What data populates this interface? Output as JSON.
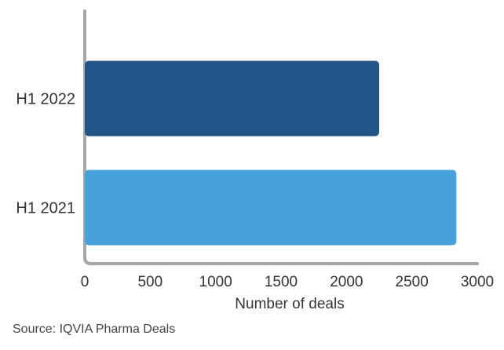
{
  "chart_data": {
    "type": "bar",
    "orientation": "horizontal",
    "categories": [
      "H1 2022",
      "H1 2021"
    ],
    "values": [
      2250,
      2840
    ],
    "bar_colors": [
      "#225585",
      "#47A1DB"
    ],
    "xlabel": "Number of deals",
    "ylabel": "",
    "xlim": [
      0,
      3000
    ],
    "xticks": [
      "0",
      "500",
      "1000",
      "1500",
      "2000",
      "2500",
      "3000"
    ],
    "grid": false,
    "legend": "none"
  },
  "source": "Source: IQVIA Pharma Deals",
  "colors": {
    "axis": "#A6A6A6",
    "text": "#333333"
  }
}
